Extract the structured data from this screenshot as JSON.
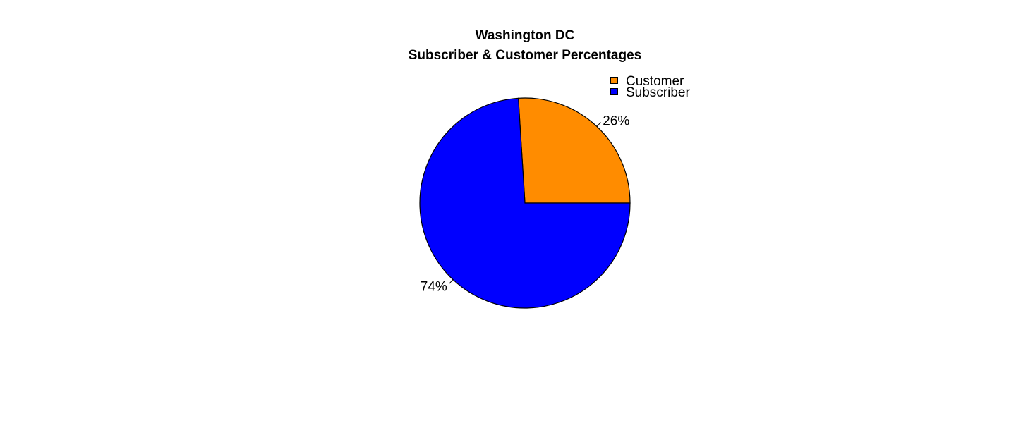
{
  "chart_data": {
    "type": "pie",
    "title_line1": "Washington DC",
    "title_line2": "Subscriber & Customer Percentages",
    "slices": [
      {
        "name": "Customer",
        "value": 26,
        "label": "26%",
        "color": "#FF8C00"
      },
      {
        "name": "Subscriber",
        "value": 74,
        "label": "74%",
        "color": "#0000FF"
      }
    ],
    "legend": {
      "placement": "top-right",
      "items": [
        {
          "label": "Customer",
          "color": "#FF8C00"
        },
        {
          "label": "Subscriber",
          "color": "#0000FF"
        }
      ]
    },
    "start": "3 o'clock",
    "direction": "counterclockwise"
  }
}
